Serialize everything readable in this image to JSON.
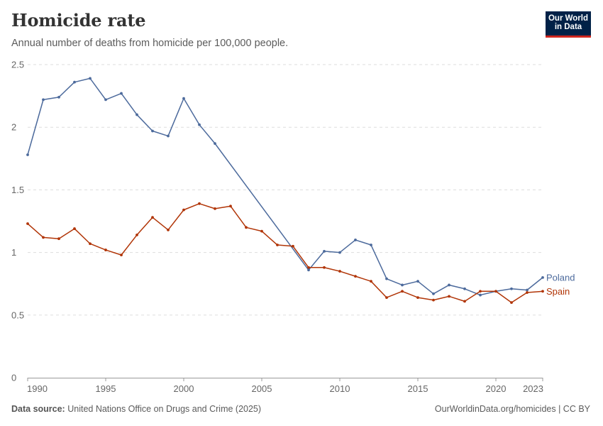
{
  "header": {
    "title": "Homicide rate",
    "subtitle": "Annual number of deaths from homicide per 100,000 people."
  },
  "logo": {
    "line1": "Our World",
    "line2": "in Data"
  },
  "footer": {
    "source_label": "Data source:",
    "source_text": "United Nations Office on Drugs and Crime (2025)",
    "url_license": "OurWorldinData.org/homicides | CC BY"
  },
  "colors": {
    "poland": "#4c6a9c",
    "spain": "#b13507"
  },
  "chart_data": {
    "type": "line",
    "title": "Homicide rate",
    "subtitle": "Annual number of deaths from homicide per 100,000 people.",
    "xlabel": "",
    "ylabel": "",
    "xlim": [
      1990,
      2023
    ],
    "ylim": [
      0,
      2.5
    ],
    "x_ticks": [
      1990,
      1995,
      2000,
      2005,
      2010,
      2015,
      2020,
      2023
    ],
    "y_ticks": [
      0,
      0.5,
      1,
      1.5,
      2,
      2.5
    ],
    "y_tick_labels": [
      "0",
      "0.5",
      "1",
      "1.5",
      "2",
      "2.5"
    ],
    "grid": true,
    "series": [
      {
        "name": "Poland",
        "color": "#4c6a9c",
        "points": [
          [
            1990,
            1.78
          ],
          [
            1991,
            2.22
          ],
          [
            1992,
            2.24
          ],
          [
            1993,
            2.36
          ],
          [
            1994,
            2.39
          ],
          [
            1995,
            2.22
          ],
          [
            1996,
            2.27
          ],
          [
            1997,
            2.1
          ],
          [
            1998,
            1.97
          ],
          [
            1999,
            1.93
          ],
          [
            2000,
            2.23
          ],
          [
            2001,
            2.02
          ],
          [
            2002,
            1.87
          ],
          [
            2008,
            0.86
          ],
          [
            2009,
            1.01
          ],
          [
            2010,
            1.0
          ],
          [
            2011,
            1.1
          ],
          [
            2012,
            1.06
          ],
          [
            2013,
            0.79
          ],
          [
            2014,
            0.74
          ],
          [
            2015,
            0.77
          ],
          [
            2016,
            0.67
          ],
          [
            2017,
            0.74
          ],
          [
            2018,
            0.71
          ],
          [
            2019,
            0.66
          ],
          [
            2020,
            0.69
          ],
          [
            2021,
            0.71
          ],
          [
            2022,
            0.7
          ],
          [
            2023,
            0.8
          ]
        ]
      },
      {
        "name": "Spain",
        "color": "#b13507",
        "points": [
          [
            1990,
            1.23
          ],
          [
            1991,
            1.12
          ],
          [
            1992,
            1.11
          ],
          [
            1993,
            1.19
          ],
          [
            1994,
            1.07
          ],
          [
            1995,
            1.02
          ],
          [
            1996,
            0.98
          ],
          [
            1997,
            1.14
          ],
          [
            1998,
            1.28
          ],
          [
            1999,
            1.18
          ],
          [
            2000,
            1.34
          ],
          [
            2001,
            1.39
          ],
          [
            2002,
            1.35
          ],
          [
            2003,
            1.37
          ],
          [
            2004,
            1.2
          ],
          [
            2005,
            1.17
          ],
          [
            2006,
            1.06
          ],
          [
            2007,
            1.05
          ],
          [
            2008,
            0.88
          ],
          [
            2009,
            0.88
          ],
          [
            2010,
            0.85
          ],
          [
            2011,
            0.81
          ],
          [
            2012,
            0.77
          ],
          [
            2013,
            0.64
          ],
          [
            2014,
            0.69
          ],
          [
            2015,
            0.64
          ],
          [
            2016,
            0.62
          ],
          [
            2017,
            0.65
          ],
          [
            2018,
            0.61
          ],
          [
            2019,
            0.69
          ],
          [
            2020,
            0.69
          ],
          [
            2021,
            0.6
          ],
          [
            2022,
            0.68
          ],
          [
            2023,
            0.69
          ]
        ]
      }
    ]
  }
}
